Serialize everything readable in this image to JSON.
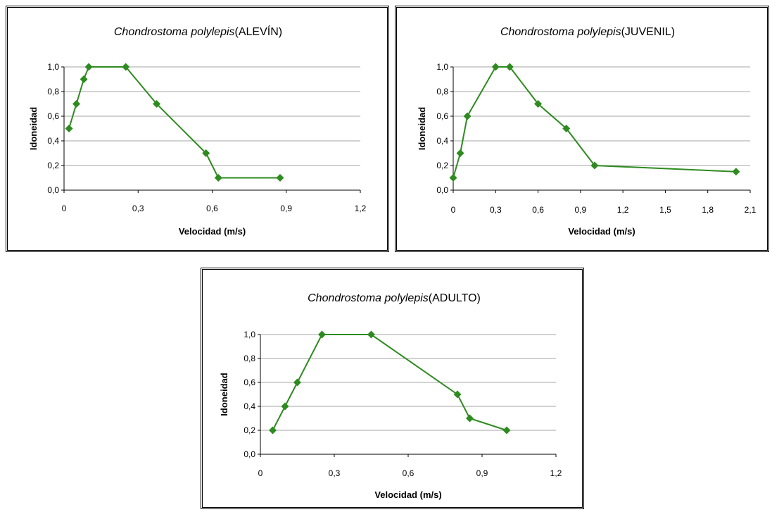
{
  "chart_data": [
    {
      "type": "line",
      "title_species": "Chondrostoma polylepis",
      "title_stage": "(ALEVÍN)",
      "xlabel": "Velocidad (m/s)",
      "ylabel": "Idoneidad",
      "xlim": [
        0,
        1.2
      ],
      "ylim": [
        0,
        1.0
      ],
      "xticks": [
        "0",
        "0,3",
        "0,6",
        "0,9",
        "1,2"
      ],
      "yticks": [
        "0,0",
        "0,2",
        "0,4",
        "0,6",
        "0,8",
        "1,0"
      ],
      "grid": true,
      "color": "#2e8b1f",
      "x": [
        0.02,
        0.05,
        0.08,
        0.1,
        0.25,
        0.375,
        0.575,
        0.625,
        0.875
      ],
      "y": [
        0.5,
        0.7,
        0.9,
        1.0,
        1.0,
        0.7,
        0.3,
        0.1,
        0.1
      ]
    },
    {
      "type": "line",
      "title_species": "Chondrostoma polylepis",
      "title_stage": "(JUVENIL)",
      "xlabel": "Velocidad (m/s)",
      "ylabel": "Idoneidad",
      "xlim": [
        0,
        2.1
      ],
      "ylim": [
        0,
        1.0
      ],
      "xticks": [
        "0",
        "0,3",
        "0,6",
        "0,9",
        "1,2",
        "1,5",
        "1,8",
        "2,1"
      ],
      "yticks": [
        "0,0",
        "0,2",
        "0,4",
        "0,6",
        "0,8",
        "1,0"
      ],
      "grid": true,
      "color": "#2e8b1f",
      "x": [
        0.0,
        0.05,
        0.1,
        0.3,
        0.4,
        0.6,
        0.8,
        1.0,
        2.0
      ],
      "y": [
        0.1,
        0.3,
        0.6,
        1.0,
        1.0,
        0.7,
        0.5,
        0.2,
        0.15
      ]
    },
    {
      "type": "line",
      "title_species": "Chondrostoma polylepis",
      "title_stage": "(ADULTO)",
      "xlabel": "Velocidad (m/s)",
      "ylabel": "Idoneidad",
      "xlim": [
        0,
        1.2
      ],
      "ylim": [
        0,
        1.0
      ],
      "xticks": [
        "0",
        "0,3",
        "0,6",
        "0,9",
        "1,2"
      ],
      "yticks": [
        "0,0",
        "0,2",
        "0,4",
        "0,6",
        "0,8",
        "1,0"
      ],
      "grid": true,
      "color": "#2e8b1f",
      "x": [
        0.05,
        0.1,
        0.15,
        0.25,
        0.45,
        0.8,
        0.85,
        1.0
      ],
      "y": [
        0.2,
        0.4,
        0.6,
        1.0,
        1.0,
        0.5,
        0.3,
        0.2
      ]
    }
  ]
}
